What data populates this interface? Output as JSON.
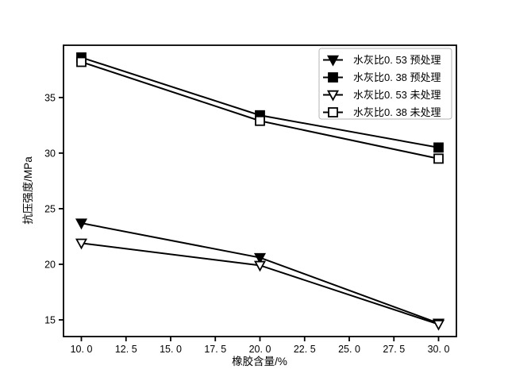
{
  "chart_data": {
    "type": "line",
    "title": "",
    "xlabel": "橡胶含量/%",
    "ylabel": "抗压强度/MPa",
    "x": [
      10,
      20,
      30
    ],
    "series": [
      {
        "name": "水灰比0. 53 预处理",
        "marker": "triangle-down-filled",
        "color": "#000000",
        "values": [
          23.7,
          20.6,
          14.7
        ]
      },
      {
        "name": "水灰比0. 38 预处理",
        "marker": "square-filled",
        "color": "#000000",
        "values": [
          38.6,
          33.4,
          30.5
        ]
      },
      {
        "name": "水灰比0. 53 未处理",
        "marker": "triangle-down-open",
        "color": "#000000",
        "values": [
          21.9,
          19.9,
          14.6
        ]
      },
      {
        "name": "水灰比0. 38 未处理",
        "marker": "square-open",
        "color": "#000000",
        "values": [
          38.2,
          32.9,
          29.5
        ]
      }
    ],
    "xlim": [
      9,
      31
    ],
    "ylim": [
      13.5,
      39.7
    ],
    "xticks": {
      "values": [
        10,
        12.5,
        15,
        17.5,
        20,
        22.5,
        25,
        27.5,
        30
      ],
      "labels": [
        "10. 0",
        "12. 5",
        "15. 0",
        "17. 5",
        "20. 0",
        "22. 5",
        "25. 0",
        "27. 5",
        "30. 0"
      ]
    },
    "yticks": {
      "values": [
        15,
        20,
        25,
        30,
        35
      ],
      "labels": [
        "15",
        "20",
        "25",
        "30",
        "35"
      ]
    },
    "grid": false,
    "legend": {
      "position": "upper right",
      "entries": [
        "水灰比0. 53 预处理",
        "水灰比0. 38 预处理",
        "水灰比0. 53 未处理",
        "水灰比0. 38 未处理"
      ]
    },
    "colors": {
      "line": "#000000",
      "background": "#ffffff",
      "legend_border": "#b3b3b3"
    }
  }
}
